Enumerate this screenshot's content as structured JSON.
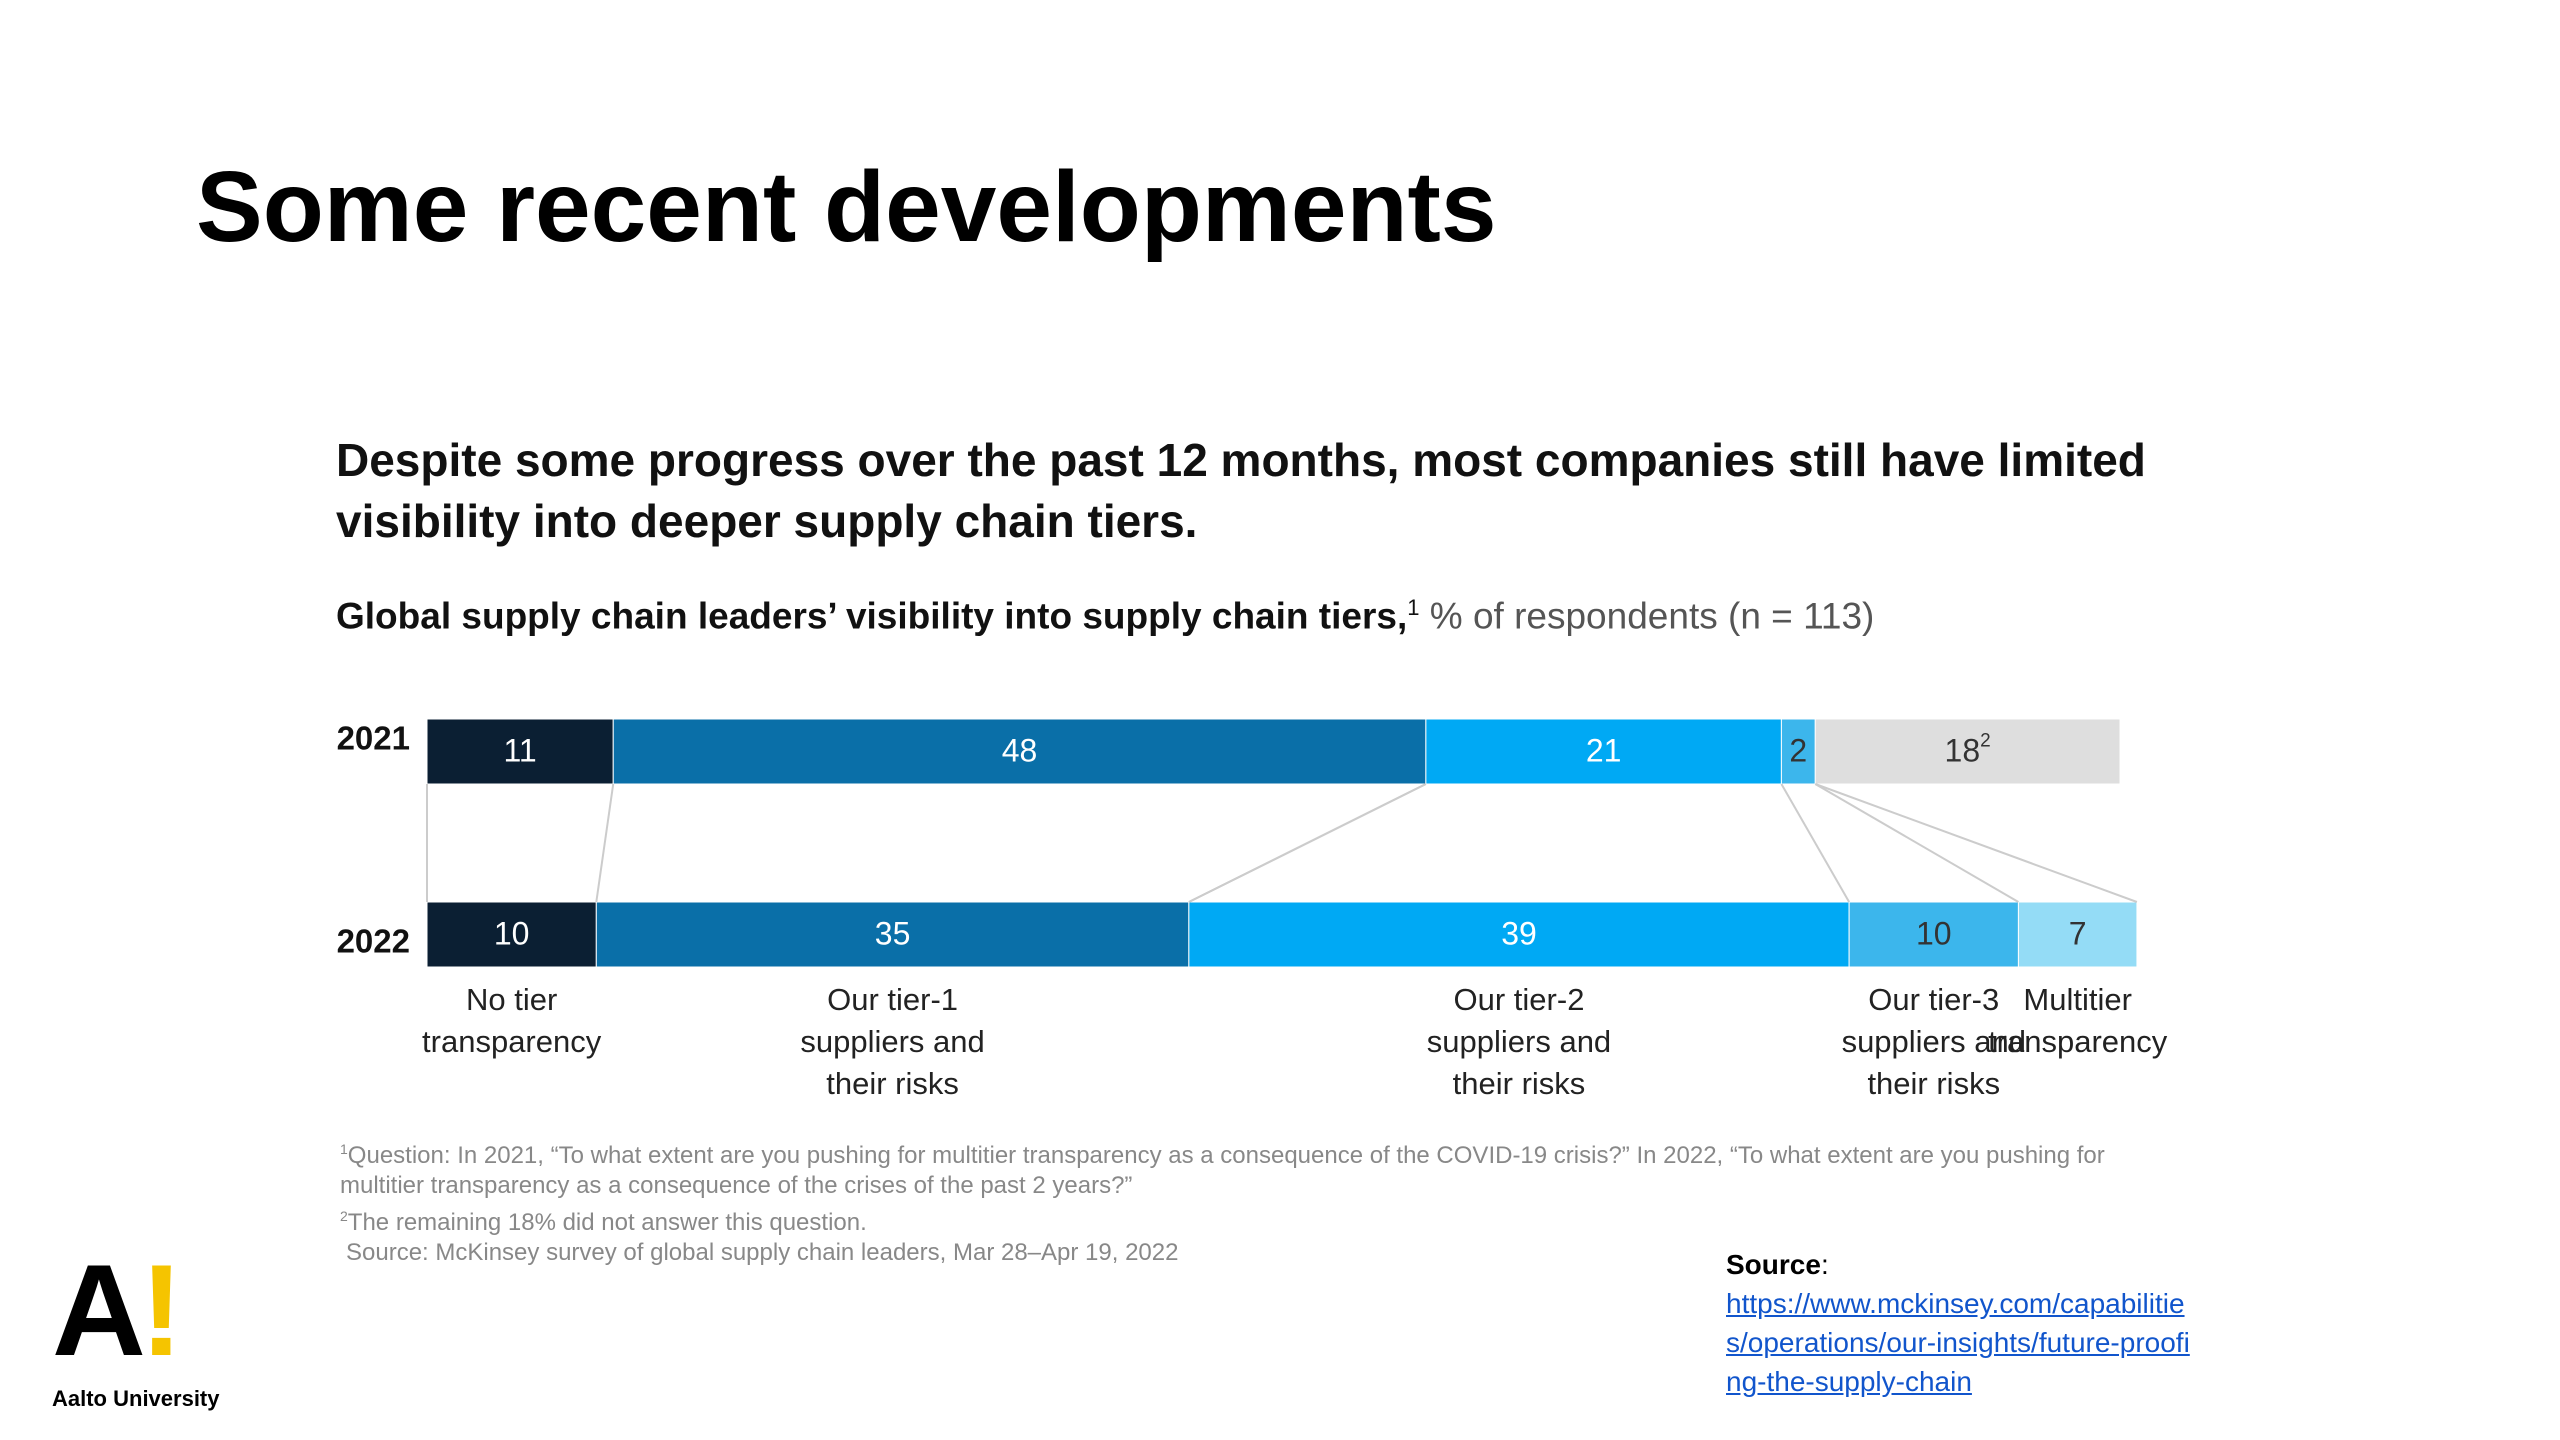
{
  "slide": {
    "title": "Some recent developments",
    "logo_mark": "A!",
    "logo_text": "Aalto University",
    "source_label": "Source",
    "source_colon": ":",
    "source_url": "https://www.mckinsey.com/capabilities/operations/our-insights/future-proofing-the-supply-chain"
  },
  "chart_data": {
    "type": "stacked_bar",
    "title": "Despite some progress over the past 12 months, most companies still have limited visibility into deeper supply chain tiers.",
    "subtitle_bold": "Global supply chain leaders’ visibility into supply chain tiers,",
    "subtitle_note": "1",
    "subtitle_rest": "% of respondents (n = 113)",
    "categories": [
      "2021",
      "2022"
    ],
    "series": [
      {
        "name": "No tier transparency",
        "color": "#0b1f33",
        "values": [
          11,
          10
        ]
      },
      {
        "name": "Our tier-1 suppliers and their risks",
        "color": "#0a6fa8",
        "values": [
          48,
          35
        ]
      },
      {
        "name": "Our tier-2 suppliers and their risks",
        "color": "#00a9f4",
        "values": [
          21,
          39
        ]
      },
      {
        "name": "Our tier-3 suppliers and their risks",
        "color": "#3cb6ec",
        "values": [
          2,
          10
        ]
      },
      {
        "name": "Multitier transparency",
        "color": "#94dcf6",
        "values": [
          null,
          7
        ]
      },
      {
        "color": "#dedede",
        "values": [
          18,
          null
        ],
        "notes": [
          "2",
          null
        ]
      }
    ],
    "footnotes": [
      {
        "mark": "1",
        "text": "Question: In 2021, “To what extent are you pushing for multitier transparency as a consequence of the COVID-19 crisis?” In 2022, “To what extent are you pushing for multitier transparency as a consequence of the crises of the past 2 years?”"
      },
      {
        "mark": "2",
        "text": "The remaining 18% did not answer this question."
      },
      {
        "text": "Source: McKinsey survey of global supply chain leaders, Mar 28–Apr 19, 2022"
      }
    ]
  }
}
